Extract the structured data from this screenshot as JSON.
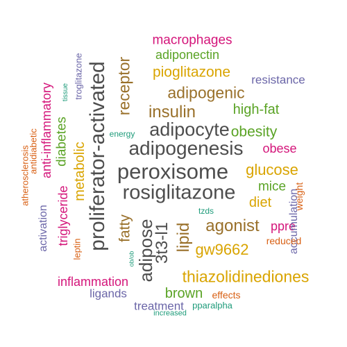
{
  "colors": {
    "gray": "#4d4d4d",
    "gold": "#d9a400",
    "brown": "#99702a",
    "green": "#5aa325",
    "magenta": "#d4157a",
    "purple": "#6b66a8",
    "orange": "#d85f12",
    "teal": "#1e9b7a"
  },
  "words": [
    "peroxisome",
    "rosiglitazone",
    "adipogenesis",
    "adipocyte",
    "proliferator-activated",
    "adipose",
    "agonist",
    "insulin",
    "adipogenic",
    "pioglitazone",
    "3t3-l1",
    "lipid",
    "receptor",
    "thiazolidinediones",
    "glucose",
    "gw9662",
    "obesity",
    "fatty",
    "high-fat",
    "brown",
    "diet",
    "mice",
    "metabolic",
    "macrophages",
    "inflammation",
    "obese",
    "ppre",
    "adiponectin",
    "diabetes",
    "anti-inflammatory",
    "triglyceride",
    "resistance",
    "ligands",
    "treatment",
    "activation",
    "accumulation",
    "weight",
    "effects",
    "reduced",
    "pparalpha",
    "troglitazone",
    "leptin",
    "atherosclerosis",
    "antidiabetic",
    "energy",
    "tzds",
    "increased",
    "tissue",
    "ob/ob"
  ]
}
